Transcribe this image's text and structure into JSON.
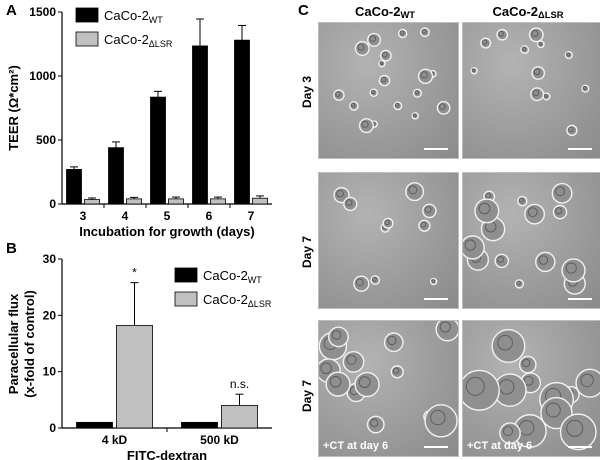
{
  "panels": {
    "A": {
      "letter": "A"
    },
    "B": {
      "letter": "B"
    },
    "C": {
      "letter": "C"
    }
  },
  "chart_data": [
    {
      "type": "bar",
      "panel": "A",
      "title": "",
      "xlabel": "Incubation for growth (days)",
      "ylabel": "TEER (Ω*cm²)",
      "categories": [
        "3",
        "4",
        "5",
        "6",
        "7"
      ],
      "ylim": [
        0,
        1500
      ],
      "yticks": [
        "0",
        "500",
        "1000",
        "1500"
      ],
      "series": [
        {
          "name_main": "CaCo-2",
          "name_sub": "WT",
          "color": "#000000",
          "values": [
            270,
            440,
            835,
            1235,
            1280
          ],
          "errors": [
            20,
            45,
            45,
            210,
            115
          ]
        },
        {
          "name_main": "CaCo-2",
          "name_sub": "ΔLSR",
          "color": "#c0c0c0",
          "values": [
            35,
            40,
            40,
            40,
            45
          ],
          "errors": [
            12,
            12,
            14,
            14,
            18
          ]
        }
      ],
      "legend": "top-left",
      "grid": false
    },
    {
      "type": "bar",
      "panel": "B",
      "title": "",
      "xlabel": "FITC-dextran",
      "ylabel_line1": "Paracellular flux",
      "ylabel_line2": "(x-fold of control)",
      "categories": [
        "4 kD",
        "500 kD"
      ],
      "ylim": [
        0,
        30
      ],
      "yticks": [
        "0",
        "10",
        "20",
        "30"
      ],
      "series": [
        {
          "name_main": "CaCo-2",
          "name_sub": "WT",
          "color": "#000000",
          "values": [
            1,
            1
          ],
          "errors": [
            0,
            0
          ]
        },
        {
          "name_main": "CaCo-2",
          "name_sub": "ΔLSR",
          "color": "#c0c0c0",
          "values": [
            18.2,
            4.0
          ],
          "errors": [
            7.6,
            2.0
          ]
        }
      ],
      "annotations": [
        "*",
        "n.s."
      ],
      "legend": "top-right",
      "grid": false
    }
  ],
  "micrographs": {
    "columns": [
      {
        "main": "CaCo-2",
        "sub": "WT"
      },
      {
        "main": "CaCo-2",
        "sub": "ΔLSR"
      }
    ],
    "rows": [
      {
        "label": "Day 3",
        "note": ""
      },
      {
        "label": "Day 7",
        "note": ""
      },
      {
        "label": "Day 7",
        "note": "+CT at day 6"
      }
    ]
  }
}
